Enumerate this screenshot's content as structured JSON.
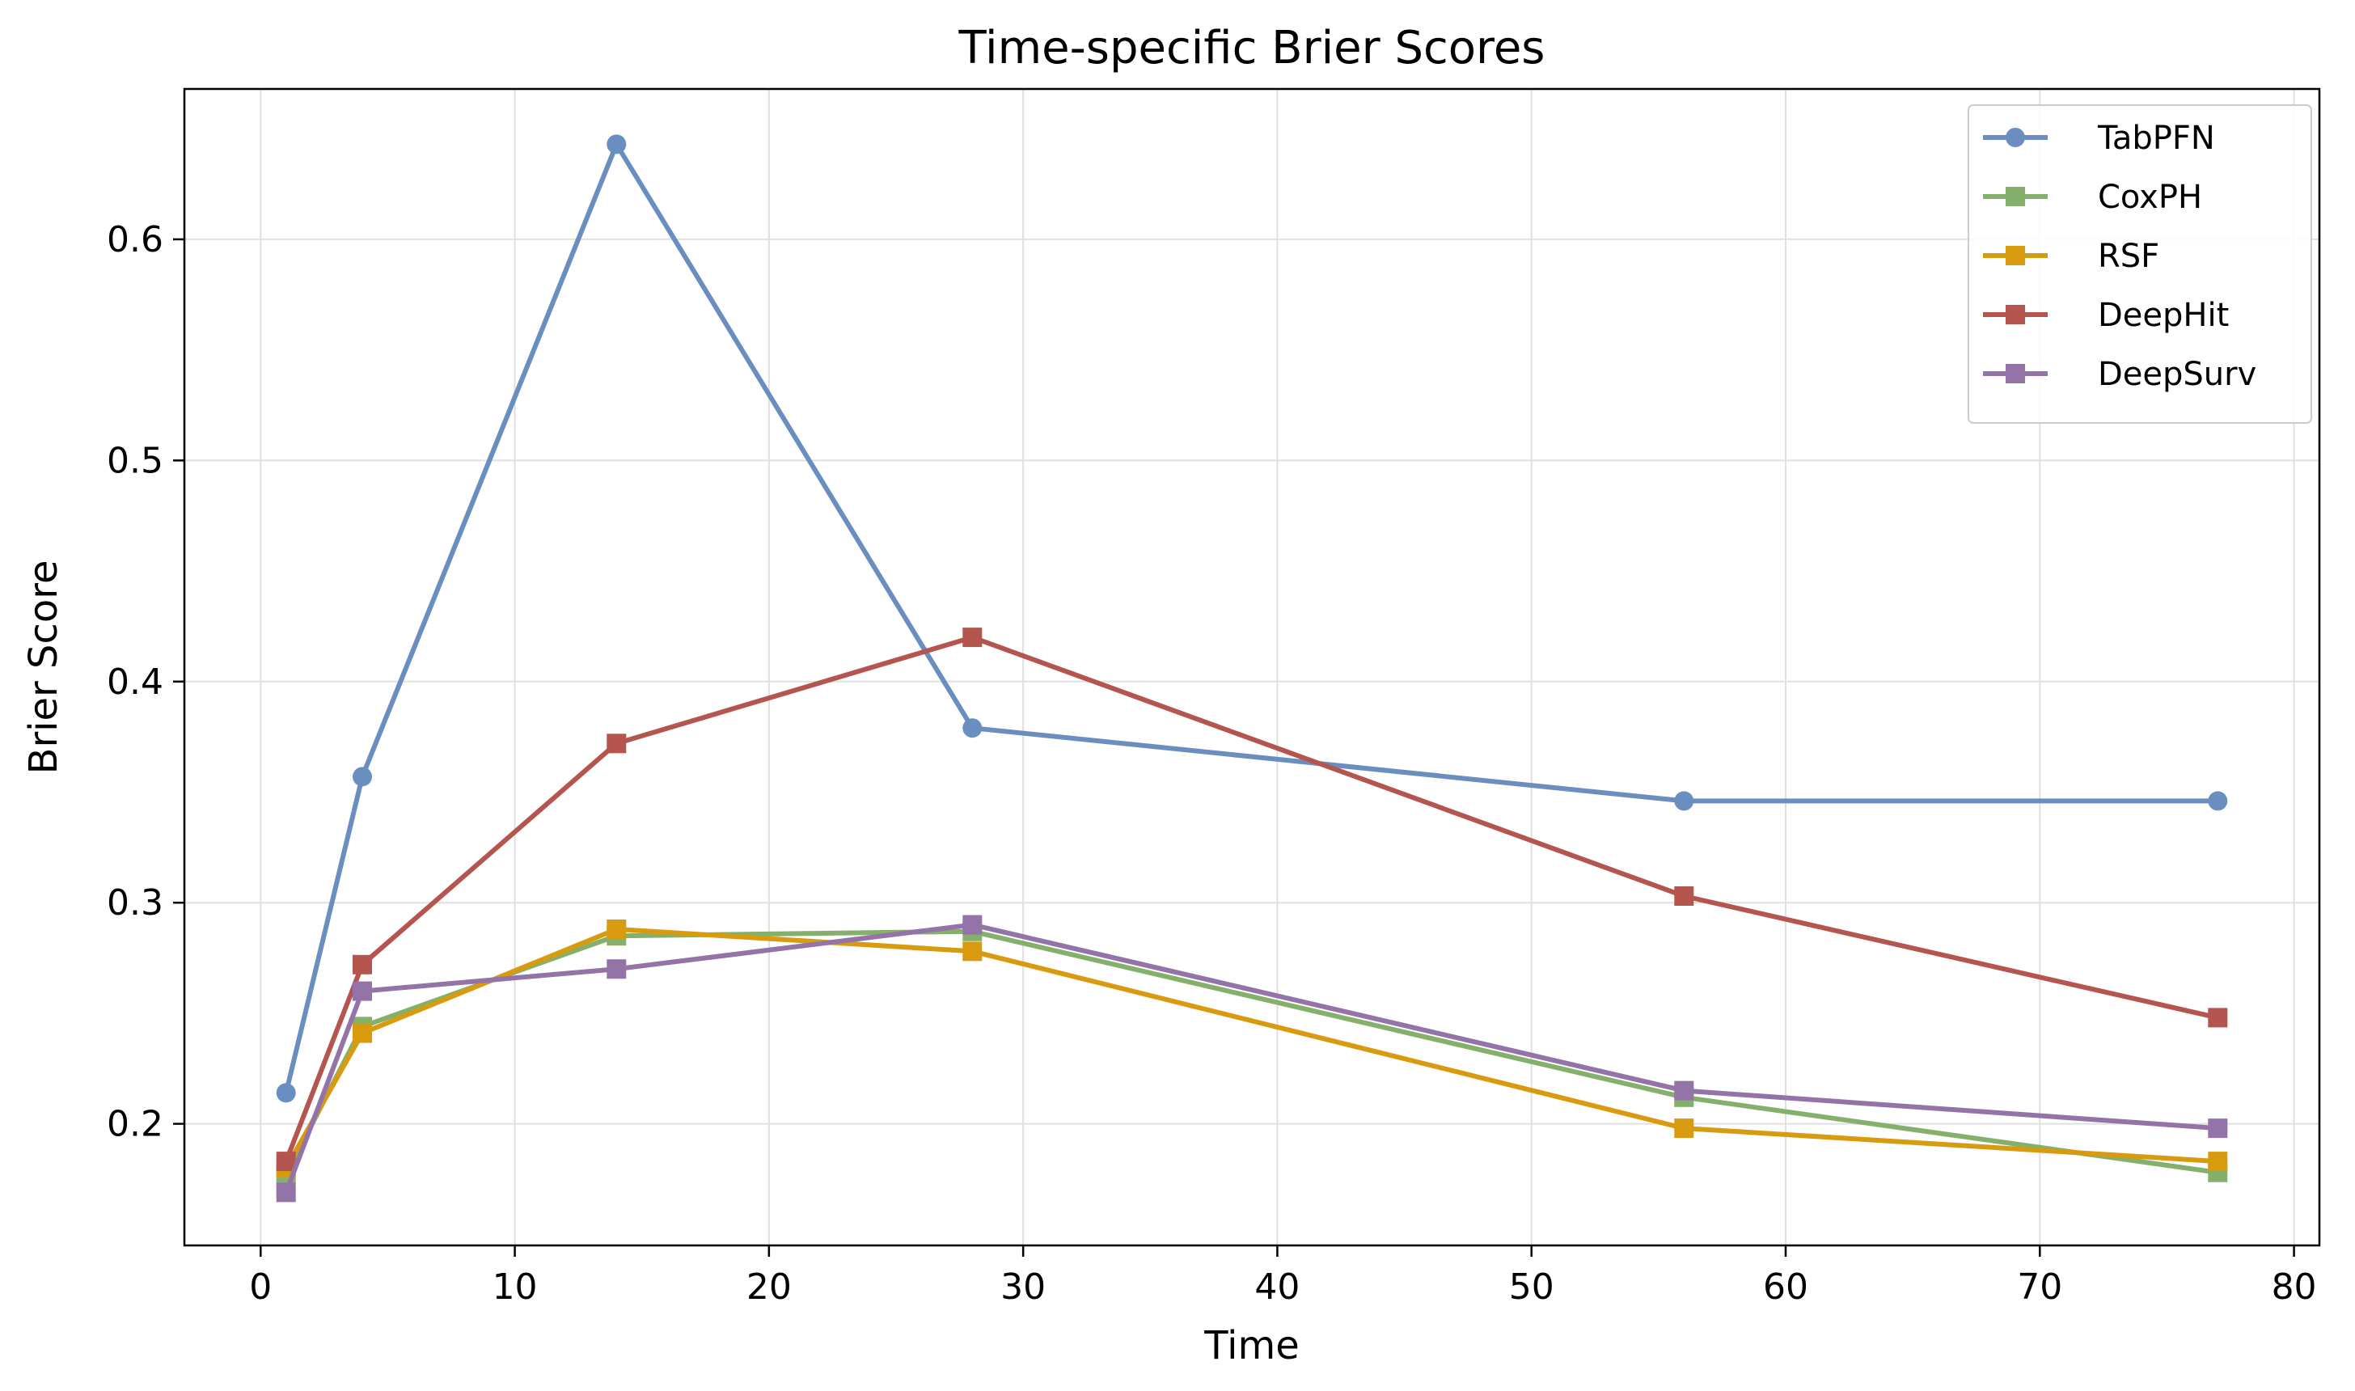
{
  "chart_data": {
    "type": "line",
    "title": "Time-specific Brier Scores",
    "xlabel": "Time",
    "ylabel": "Brier Score",
    "xlim": [
      -3,
      81
    ],
    "ylim": [
      0.145,
      0.668
    ],
    "xticks": [
      0,
      10,
      20,
      30,
      40,
      50,
      60,
      70,
      80
    ],
    "yticks": [
      0.2,
      0.3,
      0.4,
      0.5,
      0.6
    ],
    "xtick_labels": [
      "0",
      "10",
      "20",
      "30",
      "40",
      "50",
      "60",
      "70",
      "80"
    ],
    "ytick_labels": [
      "0.2",
      "0.3",
      "0.4",
      "0.5",
      "0.6"
    ],
    "grid": true,
    "legend_position": "top-right",
    "x": [
      1,
      4,
      14,
      28,
      56,
      77
    ],
    "series": [
      {
        "name": "TabPFN",
        "color": "#6a8ebf",
        "marker": "circle",
        "values": [
          0.214,
          0.357,
          0.643,
          0.379,
          0.346,
          0.346
        ]
      },
      {
        "name": "CoxPH",
        "color": "#85b06b",
        "marker": "square",
        "values": [
          0.177,
          0.244,
          0.285,
          0.287,
          0.212,
          0.178
        ]
      },
      {
        "name": "RSF",
        "color": "#d89b10",
        "marker": "square",
        "values": [
          0.18,
          0.241,
          0.288,
          0.278,
          0.198,
          0.183
        ]
      },
      {
        "name": "DeepHit",
        "color": "#b5554f",
        "marker": "square",
        "values": [
          0.183,
          0.272,
          0.372,
          0.42,
          0.303,
          0.248
        ]
      },
      {
        "name": "DeepSurv",
        "color": "#9474a8",
        "marker": "square",
        "values": [
          0.169,
          0.26,
          0.27,
          0.29,
          0.215,
          0.198
        ]
      }
    ]
  }
}
